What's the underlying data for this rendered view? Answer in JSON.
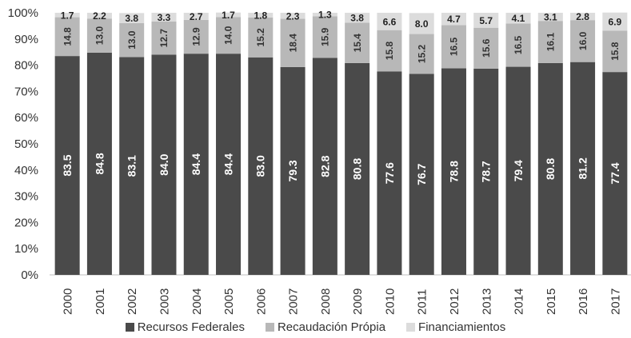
{
  "chart_data": {
    "type": "bar",
    "stacked": true,
    "categories": [
      "2000",
      "2001",
      "2002",
      "2003",
      "2004",
      "2005",
      "2006",
      "2007",
      "2008",
      "2009",
      "2010",
      "2011",
      "2012",
      "2013",
      "2014",
      "2015",
      "2016",
      "2017"
    ],
    "series": [
      {
        "name": "Recursos Federales",
        "color": "#4a4a4a",
        "values": [
          83.5,
          84.8,
          83.1,
          84.0,
          84.4,
          84.4,
          83.0,
          79.3,
          82.8,
          80.8,
          77.6,
          76.7,
          78.8,
          78.7,
          79.4,
          80.8,
          81.2,
          77.4
        ]
      },
      {
        "name": "Recaudación Própia",
        "color": "#b8b8b8",
        "values": [
          14.8,
          13.0,
          13.0,
          12.7,
          12.9,
          14.0,
          15.2,
          18.4,
          15.9,
          15.4,
          15.8,
          15.2,
          16.5,
          15.6,
          16.5,
          16.1,
          16.0,
          15.8
        ]
      },
      {
        "name": "Financiamientos",
        "color": "#dcdcdc",
        "values": [
          1.7,
          2.2,
          3.8,
          3.3,
          2.7,
          1.7,
          1.8,
          2.3,
          1.3,
          3.8,
          6.6,
          8.0,
          4.7,
          5.7,
          4.1,
          3.1,
          2.8,
          6.9
        ]
      }
    ],
    "y_ticks": [
      "0%",
      "10%",
      "20%",
      "30%",
      "40%",
      "50%",
      "60%",
      "70%",
      "80%",
      "90%",
      "100%"
    ],
    "ylim": [
      0,
      100
    ],
    "grid": false,
    "legend_position": "bottom"
  }
}
